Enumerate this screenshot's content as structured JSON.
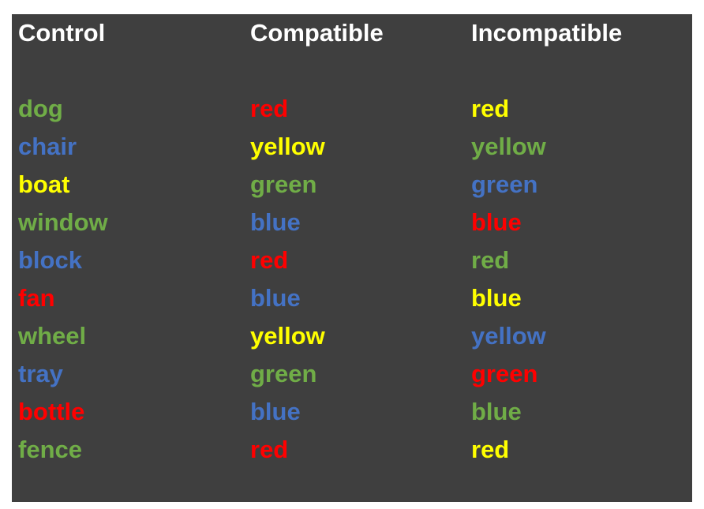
{
  "colors": {
    "green": "#70ad47",
    "blue": "#4472c4",
    "yellow": "#ffff00",
    "red": "#ff0000",
    "background": "#3f3f3f",
    "header": "#ffffff"
  },
  "columns": [
    {
      "header": "Control",
      "words": [
        {
          "text": "dog",
          "color": "green"
        },
        {
          "text": "chair",
          "color": "blue"
        },
        {
          "text": "boat",
          "color": "yellow"
        },
        {
          "text": "window",
          "color": "green"
        },
        {
          "text": "block",
          "color": "blue"
        },
        {
          "text": "fan",
          "color": "red"
        },
        {
          "text": "wheel",
          "color": "green"
        },
        {
          "text": "tray",
          "color": "blue"
        },
        {
          "text": "bottle",
          "color": "red"
        },
        {
          "text": "fence",
          "color": "green"
        }
      ]
    },
    {
      "header": "Compatible",
      "words": [
        {
          "text": "red",
          "color": "red"
        },
        {
          "text": "yellow",
          "color": "yellow"
        },
        {
          "text": "green",
          "color": "green"
        },
        {
          "text": "blue",
          "color": "blue"
        },
        {
          "text": "red",
          "color": "red"
        },
        {
          "text": "blue",
          "color": "blue"
        },
        {
          "text": "yellow",
          "color": "yellow"
        },
        {
          "text": "green",
          "color": "green"
        },
        {
          "text": "blue",
          "color": "blue"
        },
        {
          "text": "red",
          "color": "red"
        }
      ]
    },
    {
      "header": "Incompatible",
      "words": [
        {
          "text": "red",
          "color": "yellow"
        },
        {
          "text": "yellow",
          "color": "green"
        },
        {
          "text": "green",
          "color": "blue"
        },
        {
          "text": "blue",
          "color": "red"
        },
        {
          "text": "red",
          "color": "green"
        },
        {
          "text": "blue",
          "color": "yellow"
        },
        {
          "text": "yellow",
          "color": "blue"
        },
        {
          "text": "green",
          "color": "red"
        },
        {
          "text": "blue",
          "color": "green"
        },
        {
          "text": "red",
          "color": "yellow"
        }
      ]
    }
  ]
}
